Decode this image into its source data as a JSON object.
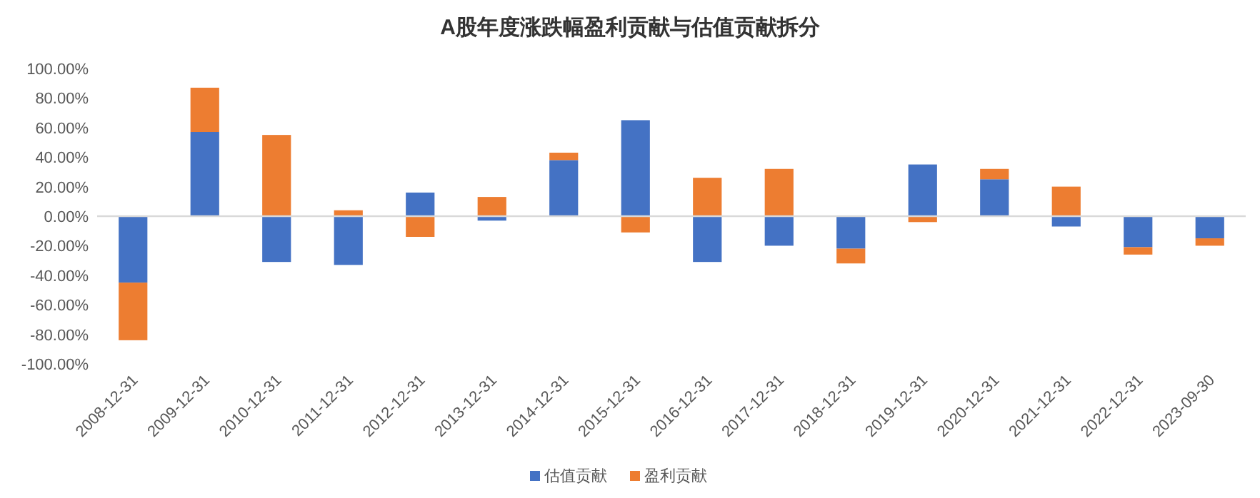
{
  "chart_data": {
    "type": "bar",
    "title": "A股年度涨跌幅盈利贡献与估值贡献拆分",
    "categories": [
      "2008-12-31",
      "2009-12-31",
      "2010-12-31",
      "2011-12-31",
      "2012-12-31",
      "2013-12-31",
      "2014-12-31",
      "2015-12-31",
      "2016-12-31",
      "2017-12-31",
      "2018-12-31",
      "2019-12-31",
      "2020-12-31",
      "2021-12-31",
      "2022-12-31",
      "2023-09-30"
    ],
    "stacked": true,
    "series": [
      {
        "name": "估值贡献",
        "color": "#4472c4",
        "values": [
          -45,
          57,
          -31,
          -33,
          16,
          -3,
          38,
          65,
          -31,
          -20,
          -22,
          35,
          25,
          -7,
          -21,
          -15
        ]
      },
      {
        "name": "盈利贡献",
        "color": "#ed7d31",
        "values": [
          -39,
          30,
          55,
          4,
          -14,
          13,
          5,
          -11,
          26,
          32,
          -10,
          -4,
          7,
          20,
          -5,
          -5
        ]
      }
    ],
    "ylim": [
      -100,
      100
    ],
    "yticks": [
      {
        "value": -100,
        "label": "-100.00%"
      },
      {
        "value": -80,
        "label": "-80.00%"
      },
      {
        "value": -60,
        "label": "-60.00%"
      },
      {
        "value": -40,
        "label": "-40.00%"
      },
      {
        "value": -20,
        "label": "-20.00%"
      },
      {
        "value": 0,
        "label": "0.00%"
      },
      {
        "value": 20,
        "label": "20.00%"
      },
      {
        "value": 40,
        "label": "40.00%"
      },
      {
        "value": 60,
        "label": "60.00%"
      },
      {
        "value": 80,
        "label": "80.00%"
      },
      {
        "value": 100,
        "label": "100.00%"
      }
    ],
    "legend": "bottom"
  }
}
